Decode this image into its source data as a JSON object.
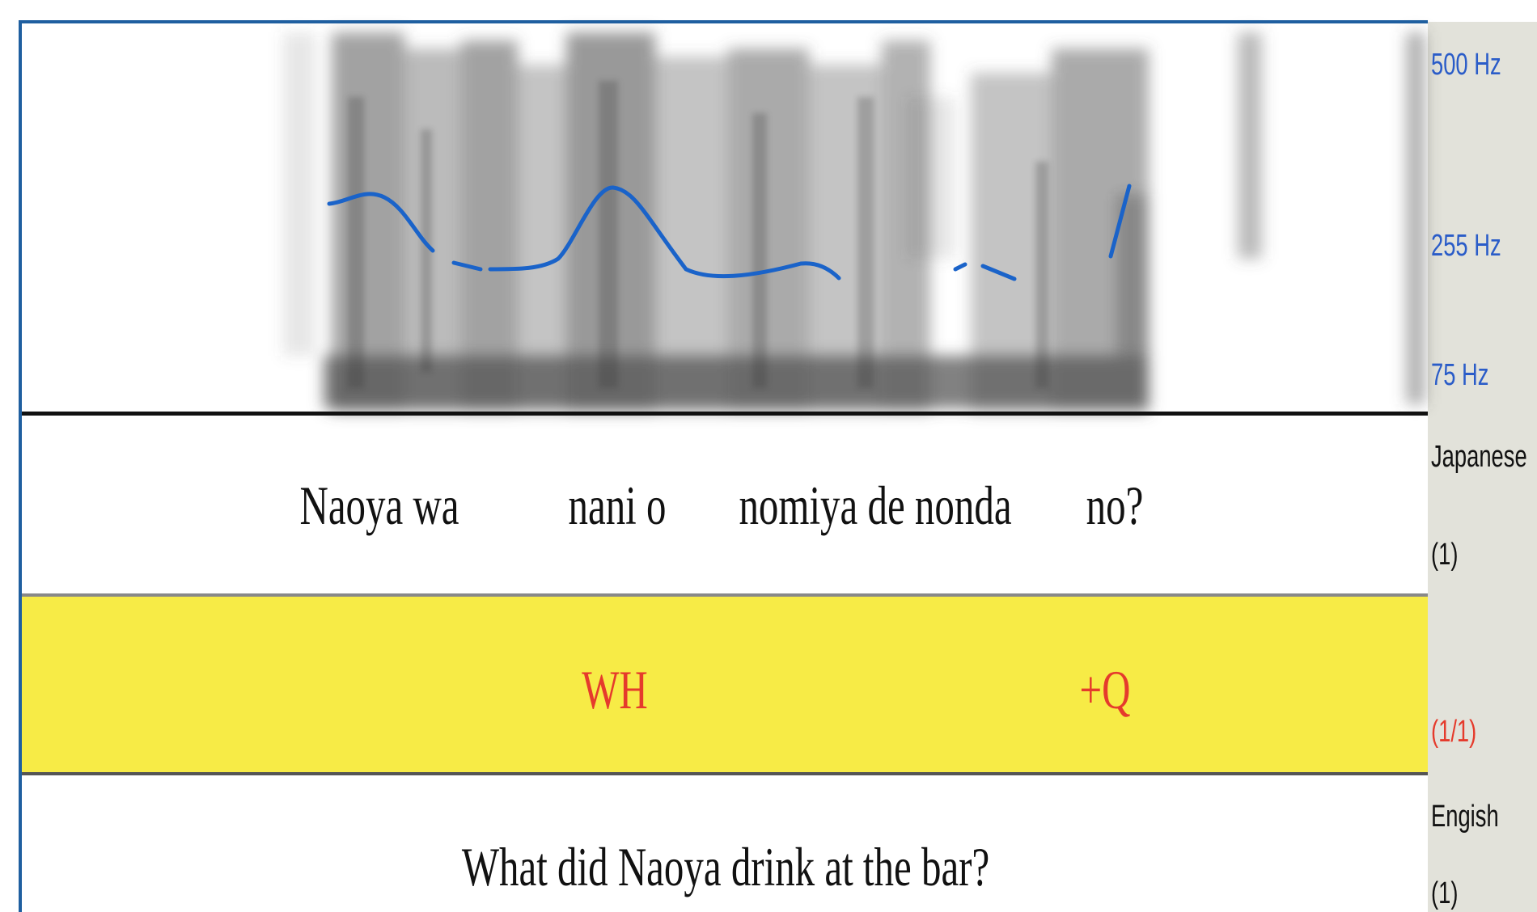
{
  "spectrogram": {
    "frequency_labels": [
      "500 Hz",
      "255 Hz",
      "75 Hz"
    ]
  },
  "tiers": [
    {
      "name": "Japanese",
      "count": "(1)",
      "words": [
        "Naoya wa",
        "nani o",
        "nomiya de nonda",
        "no?"
      ]
    },
    {
      "count": "(1/1)",
      "labels": [
        "WH",
        "+Q"
      ]
    },
    {
      "name": "Engish",
      "count": "(1)",
      "text": "What did Naoya drink at the bar?"
    }
  ]
}
